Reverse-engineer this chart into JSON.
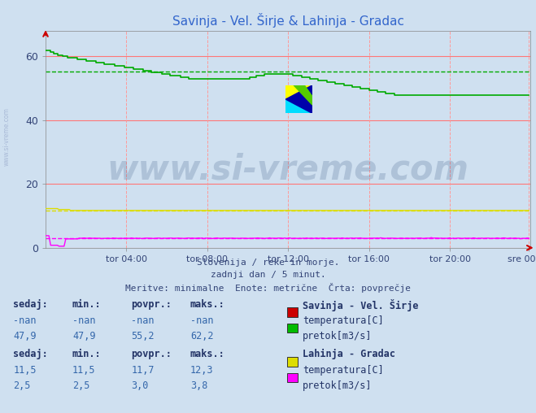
{
  "title": "Savinja - Vel. Širje & Lahinja - Gradac",
  "title_color": "#3366cc",
  "bg_color": "#cfe0f0",
  "plot_bg_color": "#cfe0f0",
  "xlabel_times": [
    "tor 04:00",
    "tor 08:00",
    "tor 12:00",
    "tor 16:00",
    "tor 20:00",
    "sre 00:00"
  ],
  "yticks": [
    0,
    20,
    40,
    60
  ],
  "ylim": [
    0,
    68
  ],
  "xlim": [
    0,
    288
  ],
  "subtitle_lines": [
    "Slovenija / reke in morje.",
    "zadnji dan / 5 minut.",
    "Meritve: minimalne  Enote: metrične  Črta: povprečje"
  ],
  "watermark_text": "www.si-vreme.com",
  "watermark_color": "#1a3a6e",
  "watermark_alpha": 0.18,
  "savinja_pretok_color": "#00aa00",
  "savinja_pretok_avg": 55.2,
  "lahinja_temp_color": "#dddd00",
  "lahinja_temp_avg": 11.7,
  "lahinja_pretok_color": "#ff00ff",
  "lahinja_pretok_avg": 3.0,
  "savinja_temp_color": "#cc0000",
  "text_color": "#334477",
  "header_color": "#223366",
  "legend_data": [
    {
      "station": "Savinja - Vel. Širje",
      "rows": [
        {
          "sedaj": "-nan",
          "min": "-nan",
          "povpr": "-nan",
          "maks": "-nan",
          "color": "#cc0000",
          "label": "temperatura[C]"
        },
        {
          "sedaj": "47,9",
          "min": "47,9",
          "povpr": "55,2",
          "maks": "62,2",
          "color": "#00bb00",
          "label": "pretok[m3/s]"
        }
      ]
    },
    {
      "station": "Lahinja - Gradac",
      "rows": [
        {
          "sedaj": "11,5",
          "min": "11,5",
          "povpr": "11,7",
          "maks": "12,3",
          "color": "#dddd00",
          "label": "temperatura[C]"
        },
        {
          "sedaj": "2,5",
          "min": "2,5",
          "povpr": "3,0",
          "maks": "3,8",
          "color": "#ff00ff",
          "label": "pretok[m3/s]"
        }
      ]
    }
  ],
  "n_points": 288,
  "xtick_positions": [
    48,
    96,
    144,
    192,
    240,
    287
  ]
}
